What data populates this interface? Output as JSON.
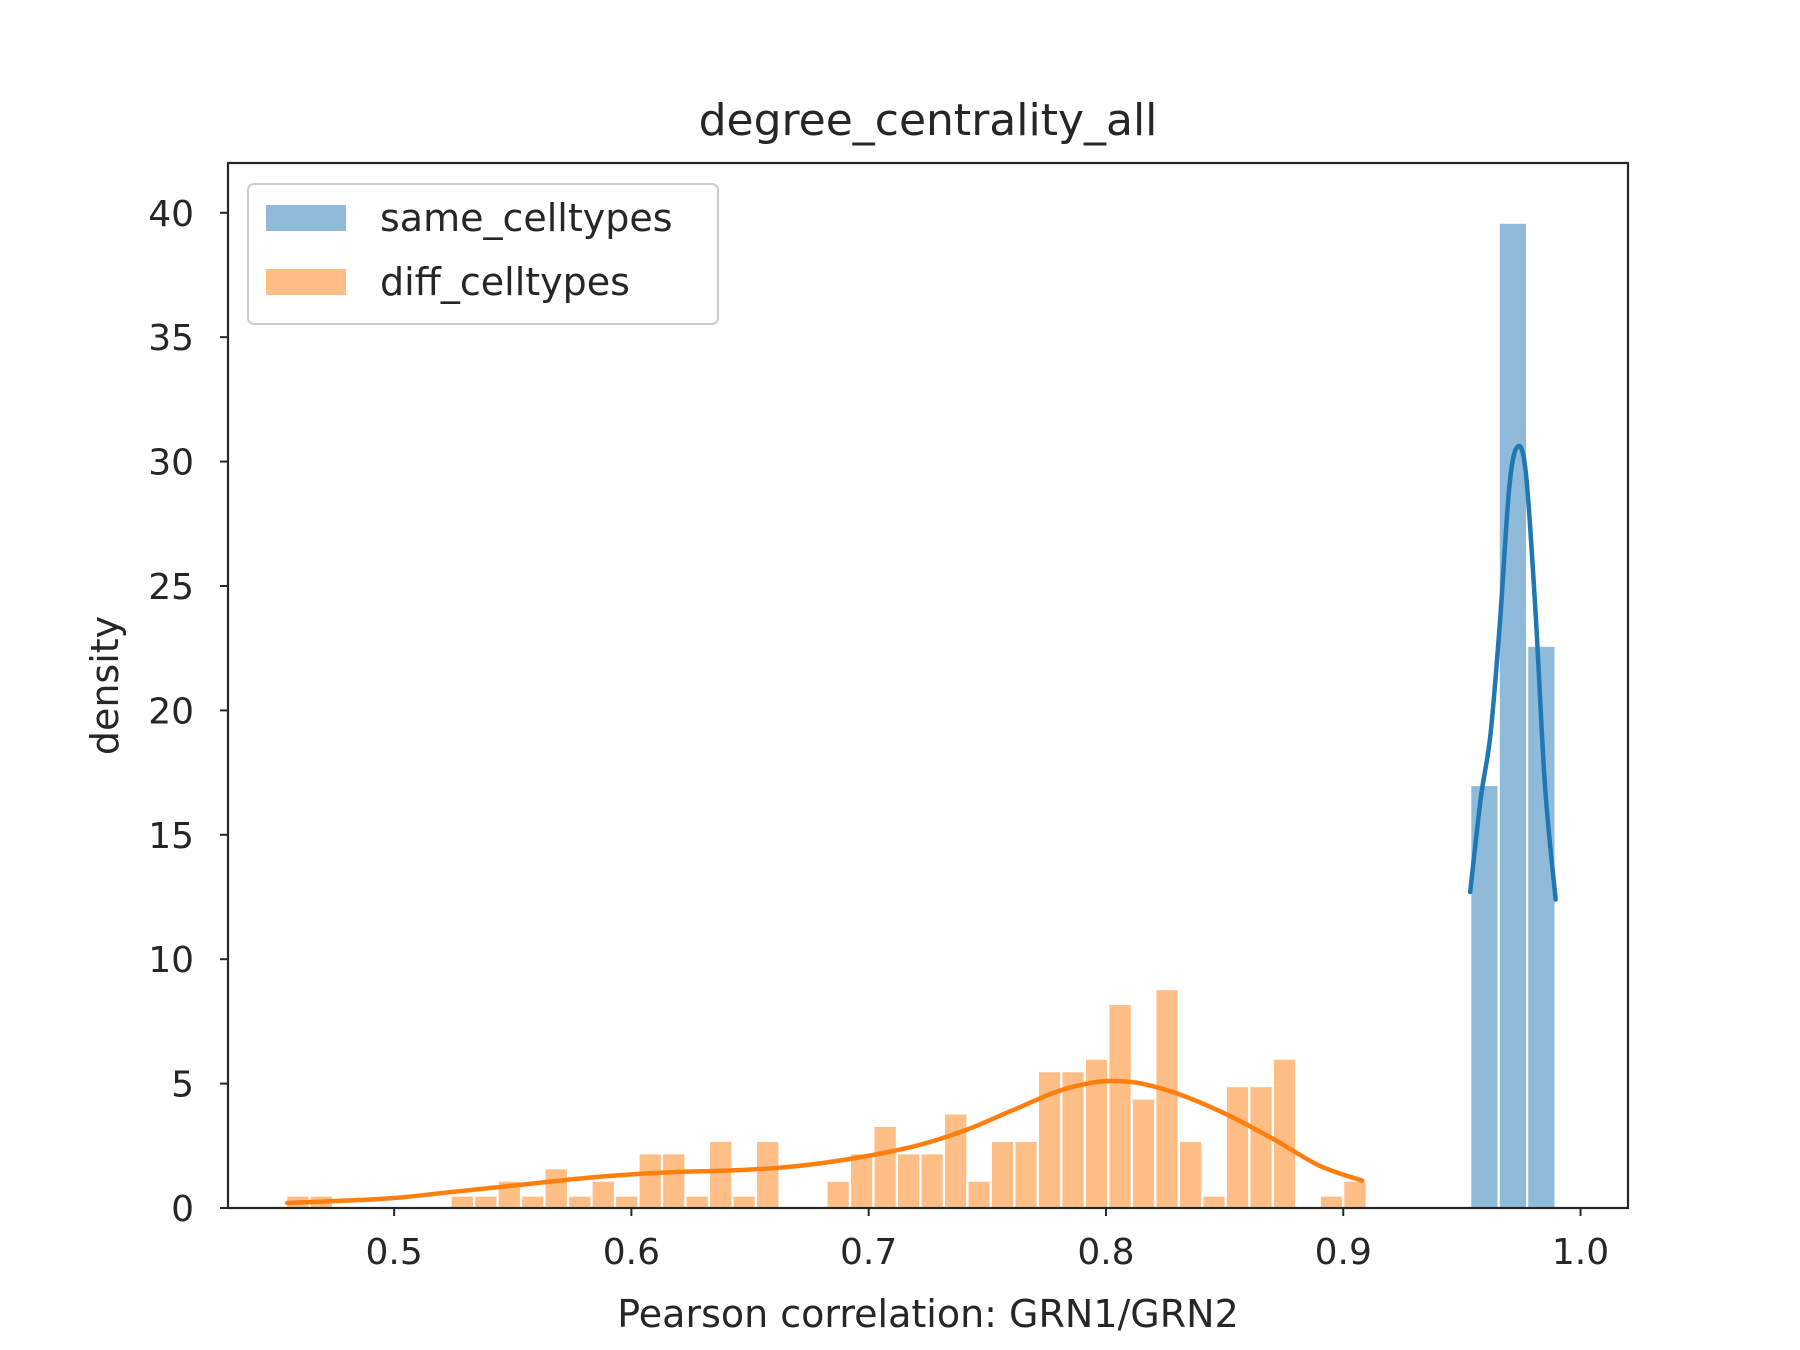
{
  "chart_data": {
    "type": "bar",
    "title": "degree_centrality_all",
    "xlabel": "Pearson correlation: GRN1/GRN2",
    "ylabel": "density",
    "xlim": [
      0.43,
      1.02
    ],
    "ylim": [
      0,
      42
    ],
    "xticks": [
      0.5,
      0.6,
      0.7,
      0.8,
      0.9,
      1.0
    ],
    "xtick_labels": [
      "0.5",
      "0.6",
      "0.7",
      "0.8",
      "0.9",
      "1.0"
    ],
    "yticks": [
      0,
      5,
      10,
      15,
      20,
      25,
      30,
      35,
      40
    ],
    "ytick_labels": [
      "0",
      "5",
      "10",
      "15",
      "20",
      "25",
      "30",
      "35",
      "40"
    ],
    "grid": false,
    "legend_position": "top-left",
    "series": [
      {
        "name": "same_celltypes",
        "color": "#1f77b4",
        "bar_color": "#8fbad9",
        "bin_width": 0.012,
        "bars": [
          {
            "x": 0.9535,
            "value": 17.0
          },
          {
            "x": 0.9655,
            "value": 39.6
          },
          {
            "x": 0.9775,
            "value": 22.6
          }
        ],
        "kde": [
          [
            0.9535,
            12.7
          ],
          [
            0.958,
            16.5
          ],
          [
            0.962,
            19.0
          ],
          [
            0.966,
            23.5
          ],
          [
            0.97,
            29.0
          ],
          [
            0.9735,
            30.6
          ],
          [
            0.977,
            29.5
          ],
          [
            0.981,
            24.0
          ],
          [
            0.985,
            17.0
          ],
          [
            0.9895,
            12.4
          ]
        ]
      },
      {
        "name": "diff_celltypes",
        "color": "#ff7f0e",
        "bar_color": "#ffbe86",
        "bin_width": 0.0099,
        "bars": [
          {
            "x": 0.4545,
            "value": 0.5
          },
          {
            "x": 0.4644,
            "value": 0.5
          },
          {
            "x": 0.5238,
            "value": 0.5
          },
          {
            "x": 0.5337,
            "value": 0.5
          },
          {
            "x": 0.5436,
            "value": 1.1
          },
          {
            "x": 0.5535,
            "value": 0.5
          },
          {
            "x": 0.5634,
            "value": 1.6
          },
          {
            "x": 0.5733,
            "value": 0.5
          },
          {
            "x": 0.5832,
            "value": 1.1
          },
          {
            "x": 0.5931,
            "value": 0.5
          },
          {
            "x": 0.603,
            "value": 2.2
          },
          {
            "x": 0.6129,
            "value": 2.2
          },
          {
            "x": 0.6228,
            "value": 0.5
          },
          {
            "x": 0.6327,
            "value": 2.7
          },
          {
            "x": 0.6426,
            "value": 0.5
          },
          {
            "x": 0.6525,
            "value": 2.7
          },
          {
            "x": 0.6822,
            "value": 1.1
          },
          {
            "x": 0.6921,
            "value": 2.2
          },
          {
            "x": 0.702,
            "value": 3.3
          },
          {
            "x": 0.7119,
            "value": 2.2
          },
          {
            "x": 0.7218,
            "value": 2.2
          },
          {
            "x": 0.7317,
            "value": 3.8
          },
          {
            "x": 0.7416,
            "value": 1.1
          },
          {
            "x": 0.7515,
            "value": 2.7
          },
          {
            "x": 0.7614,
            "value": 2.7
          },
          {
            "x": 0.7713,
            "value": 5.5
          },
          {
            "x": 0.7812,
            "value": 5.5
          },
          {
            "x": 0.7911,
            "value": 6.0
          },
          {
            "x": 0.801,
            "value": 8.2
          },
          {
            "x": 0.8109,
            "value": 4.4
          },
          {
            "x": 0.8208,
            "value": 8.8
          },
          {
            "x": 0.8307,
            "value": 2.7
          },
          {
            "x": 0.8406,
            "value": 0.5
          },
          {
            "x": 0.8505,
            "value": 4.9
          },
          {
            "x": 0.8604,
            "value": 4.9
          },
          {
            "x": 0.8703,
            "value": 6.0
          },
          {
            "x": 0.8901,
            "value": 0.5
          },
          {
            "x": 0.9,
            "value": 1.1
          }
        ],
        "kde": [
          [
            0.455,
            0.2
          ],
          [
            0.48,
            0.3
          ],
          [
            0.5,
            0.4
          ],
          [
            0.52,
            0.6
          ],
          [
            0.54,
            0.8
          ],
          [
            0.56,
            1.0
          ],
          [
            0.58,
            1.2
          ],
          [
            0.6,
            1.35
          ],
          [
            0.62,
            1.45
          ],
          [
            0.64,
            1.5
          ],
          [
            0.66,
            1.6
          ],
          [
            0.68,
            1.8
          ],
          [
            0.7,
            2.1
          ],
          [
            0.72,
            2.5
          ],
          [
            0.74,
            3.1
          ],
          [
            0.76,
            3.9
          ],
          [
            0.78,
            4.7
          ],
          [
            0.795,
            5.05
          ],
          [
            0.805,
            5.1
          ],
          [
            0.815,
            5.0
          ],
          [
            0.83,
            4.6
          ],
          [
            0.85,
            3.8
          ],
          [
            0.87,
            2.8
          ],
          [
            0.89,
            1.7
          ],
          [
            0.908,
            1.1
          ]
        ]
      }
    ]
  }
}
